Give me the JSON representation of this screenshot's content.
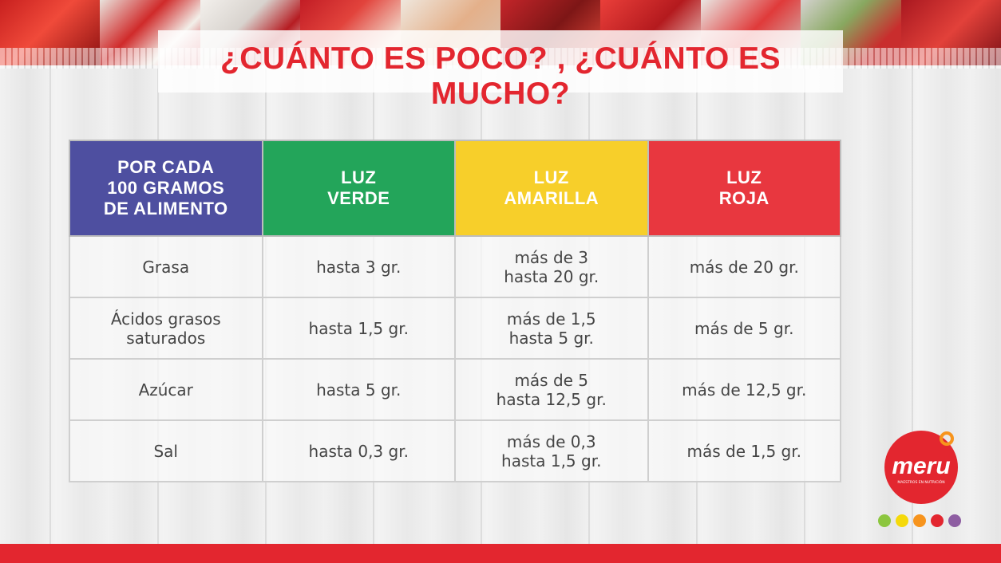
{
  "title": "¿CUÁNTO ES POCO? , ¿CUÁNTO ES MUCHO?",
  "colors": {
    "title": "#e3262f",
    "header_blue": "#4e4fa0",
    "header_green": "#23a55a",
    "header_yellow": "#f7cf2a",
    "header_red": "#e8373f",
    "bottom_bar": "#e3262f"
  },
  "table": {
    "headers": [
      "POR CADA\n100 GRAMOS\nDE ALIMENTO",
      "LUZ\nVERDE",
      "LUZ\nAMARILLA",
      "LUZ\nROJA"
    ],
    "rows": [
      [
        "Grasa",
        "hasta 3 gr.",
        "más de 3\nhasta 20 gr.",
        "más de 20 gr."
      ],
      [
        "Ácidos grasos\nsaturados",
        "hasta 1,5 gr.",
        "más de 1,5\nhasta 5 gr.",
        "más de 5 gr."
      ],
      [
        "Azúcar",
        "hasta 5 gr.",
        "más de 5\nhasta 12,5 gr.",
        "más de 12,5 gr."
      ],
      [
        "Sal",
        "hasta 0,3 gr.",
        "más de 0,3\nhasta 1,5 gr.",
        "más de 1,5 gr."
      ]
    ]
  },
  "logo": {
    "text": "meru",
    "tagline": "MAESTROS EN NUTRICIÓN",
    "dot_colors": [
      "#8cc63f",
      "#f5d90a",
      "#f7941d",
      "#e3262f",
      "#8e5ea2"
    ]
  }
}
